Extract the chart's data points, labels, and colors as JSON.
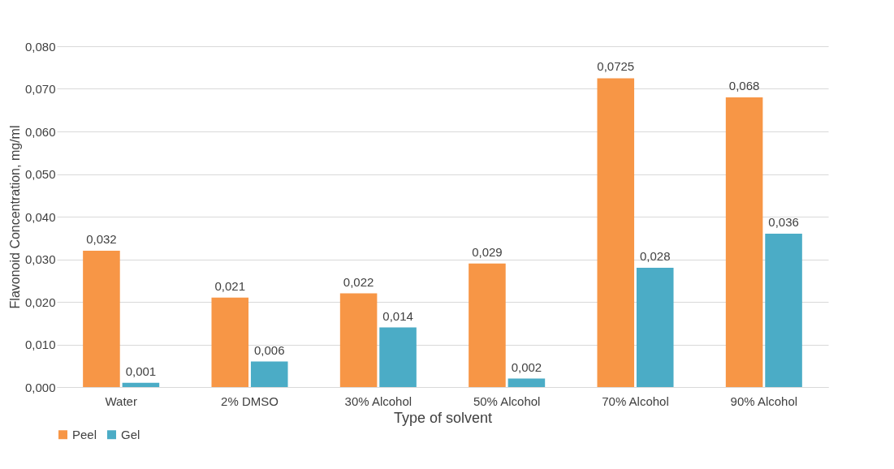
{
  "chart_data": {
    "type": "bar",
    "xlabel": "Type of solvent",
    "ylabel": "Flavonoid Concentration, mg/ml",
    "categories": [
      "Water",
      "2% DMSO",
      "30% Alcohol",
      "50% Alcohol",
      "70% Alcohol",
      "90% Alcohol"
    ],
    "series": [
      {
        "name": "Peel",
        "color": "#f79646",
        "values": [
          0.032,
          0.021,
          0.022,
          0.029,
          0.0725,
          0.068
        ],
        "value_labels": [
          "0,032",
          "0,021",
          "0,022",
          "0,029",
          "0,0725",
          "0,068"
        ]
      },
      {
        "name": "Gel",
        "color": "#4bacc6",
        "values": [
          0.001,
          0.006,
          0.014,
          0.002,
          0.028,
          0.036
        ],
        "value_labels": [
          "0,001",
          "0,006",
          "0,014",
          "0,002",
          "0,028",
          "0,036"
        ]
      }
    ],
    "ylim": [
      0,
      0.08
    ],
    "yticks": [
      {
        "value": 0,
        "label": "0,000"
      },
      {
        "value": 0.01,
        "label": "0,010"
      },
      {
        "value": 0.02,
        "label": "0,020"
      },
      {
        "value": 0.03,
        "label": "0,030"
      },
      {
        "value": 0.04,
        "label": "0,040"
      },
      {
        "value": 0.05,
        "label": "0,050"
      },
      {
        "value": 0.06,
        "label": "0,060"
      },
      {
        "value": 0.07,
        "label": "0,070"
      },
      {
        "value": 0.08,
        "label": "0,080"
      }
    ],
    "grid": "y",
    "legend": "bottom"
  }
}
